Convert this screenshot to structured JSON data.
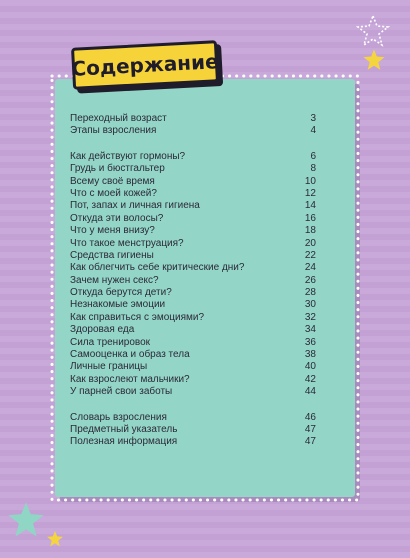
{
  "title": "Содержание",
  "colors": {
    "card": "#93d5c7",
    "tag": "#f7d33a",
    "accent_star": "#f5d53e",
    "teal_star": "#8fd6c5"
  },
  "toc": {
    "group1": [
      {
        "label": "Переходный возраст",
        "page": "3"
      },
      {
        "label": "Этапы взросления",
        "page": "4"
      }
    ],
    "group2": [
      {
        "label": "Как действуют гормоны?",
        "page": "6"
      },
      {
        "label": "Грудь и бюстгальтер",
        "page": "8"
      },
      {
        "label": "Всему своё время",
        "page": "10"
      },
      {
        "label": "Что с моей кожей?",
        "page": "12"
      },
      {
        "label": "Пот, запах и личная гигиена",
        "page": "14"
      },
      {
        "label": "Откуда эти волосы?",
        "page": "16"
      },
      {
        "label": "Что у меня внизу?",
        "page": "18"
      },
      {
        "label": "Что такое менструация?",
        "page": "20"
      },
      {
        "label": "Средства гигиены",
        "page": "22"
      },
      {
        "label": "Как облегчить себе критические дни?",
        "page": "24"
      },
      {
        "label": "Зачем нужен секс?",
        "page": "26"
      },
      {
        "label": "Откуда берутся дети?",
        "page": "28"
      },
      {
        "label": "Незнакомые эмоции",
        "page": "30"
      },
      {
        "label": "Как справиться с эмоциями?",
        "page": "32"
      },
      {
        "label": "Здоровая еда",
        "page": "34"
      },
      {
        "label": "Сила тренировок",
        "page": "36"
      },
      {
        "label": "Самооценка и образ тела",
        "page": "38"
      },
      {
        "label": "Личные границы",
        "page": "40"
      },
      {
        "label": "Как взрослеют мальчики?",
        "page": "42"
      },
      {
        "label": "У парней свои заботы",
        "page": "44"
      }
    ],
    "group3": [
      {
        "label": "Словарь взросления",
        "page": "46"
      },
      {
        "label": "Предметный указатель",
        "page": "47"
      },
      {
        "label": "Полезная информация",
        "page": "47"
      }
    ]
  }
}
